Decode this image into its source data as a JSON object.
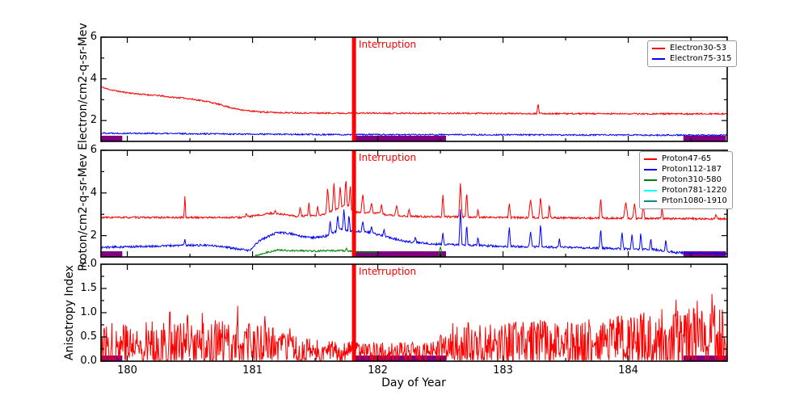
{
  "figure": {
    "background": "#ffffff",
    "left_label_top": "Proton/cm2-q-sr-Mev Electron/cm2-q-sr-Mev",
    "left_label_bottom": "Anisotropy Index",
    "x_axis": {
      "label": "Day of Year",
      "xlim": [
        179.79,
        184.79
      ],
      "major_ticks": [
        180,
        181,
        182,
        183,
        184
      ],
      "minor_ticks": [
        180.5,
        181.5,
        182.5,
        183.5,
        184.5
      ]
    },
    "interruption": {
      "label": "Interruption",
      "day": 181.81,
      "color": "#ff0000"
    },
    "gap_bars": {
      "color": "#800080",
      "ranges": [
        [
          179.79,
          179.96
        ],
        [
          181.815,
          182.545
        ],
        [
          184.44,
          184.78
        ]
      ]
    }
  },
  "chart_data": [
    {
      "type": "line",
      "name": "electron-flux-panel",
      "ylabel": "Electron/cm2-q-sr-Mev",
      "ylim": [
        1,
        6
      ],
      "yticks": [
        {
          "v": 2,
          "label": "2"
        },
        {
          "v": 4,
          "label": "4"
        },
        {
          "v": 6,
          "label": "6"
        }
      ],
      "yminor": [
        3,
        5
      ],
      "legend": {
        "position": "upper right",
        "entries": [
          {
            "label": "Electron30-53",
            "color": "#ff0000"
          },
          {
            "label": "Electron75-315",
            "color": "#0000ff"
          }
        ]
      },
      "series": [
        {
          "name": "Electron30-53",
          "color": "#ff0000",
          "seed": 11,
          "noise": 0.035,
          "base": [
            [
              179.79,
              3.62
            ],
            [
              179.85,
              3.5
            ],
            [
              179.95,
              3.38
            ],
            [
              180.05,
              3.3
            ],
            [
              180.15,
              3.24
            ],
            [
              180.25,
              3.2
            ],
            [
              180.35,
              3.12
            ],
            [
              180.45,
              3.08
            ],
            [
              180.55,
              3.0
            ],
            [
              180.65,
              2.9
            ],
            [
              180.75,
              2.75
            ],
            [
              180.85,
              2.58
            ],
            [
              180.95,
              2.48
            ],
            [
              181.05,
              2.42
            ],
            [
              181.2,
              2.38
            ],
            [
              181.5,
              2.36
            ],
            [
              182.5,
              2.35
            ],
            [
              183.5,
              2.33
            ],
            [
              184.79,
              2.32
            ]
          ],
          "spikes": [
            [
              183.28,
              2.85,
              0.01
            ]
          ]
        },
        {
          "name": "Electron75-315",
          "color": "#0000ff",
          "seed": 22,
          "noise": 0.035,
          "base": [
            [
              179.79,
              1.4
            ],
            [
              180.5,
              1.37
            ],
            [
              181.5,
              1.33
            ],
            [
              184.79,
              1.3
            ]
          ],
          "spikes": []
        }
      ]
    },
    {
      "type": "line",
      "name": "proton-flux-panel",
      "ylabel": "Proton/cm2-q-sr-Mev",
      "ylim": [
        1,
        6
      ],
      "yticks": [
        {
          "v": 2,
          "label": "2"
        },
        {
          "v": 4,
          "label": "4"
        },
        {
          "v": 6,
          "label": "6"
        }
      ],
      "yminor": [
        3,
        5
      ],
      "legend": {
        "position": "upper right",
        "entries": [
          {
            "label": "Proton47-65",
            "color": "#ff0000"
          },
          {
            "label": "Proton112-187",
            "color": "#0000ff"
          },
          {
            "label": "Proton310-580",
            "color": "#008000"
          },
          {
            "label": "Proton781-1220",
            "color": "#00ffff"
          },
          {
            "label": "Prton1080-1910",
            "color": "#008b8b"
          }
        ]
      },
      "series": [
        {
          "name": "Proton47-65",
          "color": "#ff0000",
          "seed": 33,
          "noise": 0.045,
          "base": [
            [
              179.79,
              2.85
            ],
            [
              180.9,
              2.85
            ],
            [
              181.05,
              2.95
            ],
            [
              181.15,
              3.05
            ],
            [
              181.25,
              3.0
            ],
            [
              181.35,
              2.9
            ],
            [
              181.55,
              2.95
            ],
            [
              181.65,
              3.2
            ],
            [
              181.75,
              3.45
            ],
            [
              181.82,
              3.1
            ],
            [
              182.0,
              3.05
            ],
            [
              182.1,
              2.95
            ],
            [
              182.3,
              2.9
            ],
            [
              183.0,
              2.85
            ],
            [
              184.3,
              2.8
            ],
            [
              184.79,
              2.78
            ]
          ],
          "spikes": [
            [
              180.46,
              3.9,
              0.008
            ],
            [
              180.95,
              3.05,
              0.008
            ],
            [
              181.18,
              3.2,
              0.01
            ],
            [
              181.38,
              3.35,
              0.012
            ],
            [
              181.45,
              3.6,
              0.01
            ],
            [
              181.52,
              3.4,
              0.01
            ],
            [
              181.6,
              4.3,
              0.014
            ],
            [
              181.65,
              4.55,
              0.012
            ],
            [
              181.7,
              4.4,
              0.012
            ],
            [
              181.745,
              4.72,
              0.012
            ],
            [
              181.78,
              4.45,
              0.01
            ],
            [
              181.88,
              4.0,
              0.014
            ],
            [
              181.95,
              3.55,
              0.014
            ],
            [
              182.03,
              3.5,
              0.012
            ],
            [
              182.15,
              3.45,
              0.014
            ],
            [
              182.25,
              3.25,
              0.012
            ],
            [
              182.52,
              3.95,
              0.012
            ],
            [
              182.66,
              4.5,
              0.014
            ],
            [
              182.71,
              4.1,
              0.012
            ],
            [
              182.8,
              3.25,
              0.01
            ],
            [
              183.05,
              3.55,
              0.012
            ],
            [
              183.22,
              3.7,
              0.018
            ],
            [
              183.3,
              3.85,
              0.014
            ],
            [
              183.37,
              3.5,
              0.01
            ],
            [
              183.78,
              3.8,
              0.012
            ],
            [
              183.98,
              3.6,
              0.018
            ],
            [
              184.05,
              3.55,
              0.014
            ],
            [
              184.12,
              3.45,
              0.012
            ],
            [
              184.27,
              3.35,
              0.01
            ],
            [
              184.7,
              3.0,
              0.012
            ]
          ]
        },
        {
          "name": "Proton112-187",
          "color": "#0000ff",
          "seed": 44,
          "noise": 0.05,
          "base": [
            [
              179.79,
              1.45
            ],
            [
              180.2,
              1.5
            ],
            [
              180.45,
              1.55
            ],
            [
              180.6,
              1.55
            ],
            [
              180.75,
              1.5
            ],
            [
              180.9,
              1.35
            ],
            [
              180.98,
              1.3
            ],
            [
              181.05,
              1.75
            ],
            [
              181.12,
              1.95
            ],
            [
              181.2,
              2.15
            ],
            [
              181.3,
              2.1
            ],
            [
              181.4,
              1.95
            ],
            [
              181.5,
              1.9
            ],
            [
              181.6,
              2.0
            ],
            [
              181.7,
              2.3
            ],
            [
              181.8,
              2.2
            ],
            [
              181.9,
              2.2
            ],
            [
              182.0,
              2.05
            ],
            [
              182.1,
              1.9
            ],
            [
              182.2,
              1.75
            ],
            [
              182.35,
              1.65
            ],
            [
              182.5,
              1.6
            ],
            [
              183.0,
              1.5
            ],
            [
              183.5,
              1.45
            ],
            [
              184.2,
              1.35
            ],
            [
              184.4,
              1.2
            ],
            [
              184.79,
              1.15
            ]
          ],
          "spikes": [
            [
              180.46,
              1.85,
              0.008
            ],
            [
              181.62,
              2.7,
              0.012
            ],
            [
              181.68,
              3.0,
              0.012
            ],
            [
              181.73,
              3.3,
              0.012
            ],
            [
              181.77,
              3.05,
              0.01
            ],
            [
              181.88,
              2.7,
              0.012
            ],
            [
              181.95,
              2.45,
              0.012
            ],
            [
              182.05,
              2.3,
              0.012
            ],
            [
              182.3,
              1.95,
              0.01
            ],
            [
              182.52,
              2.15,
              0.01
            ],
            [
              182.66,
              3.3,
              0.012
            ],
            [
              182.71,
              2.6,
              0.01
            ],
            [
              182.8,
              1.95,
              0.01
            ],
            [
              183.05,
              2.45,
              0.012
            ],
            [
              183.22,
              2.2,
              0.014
            ],
            [
              183.3,
              2.6,
              0.012
            ],
            [
              183.45,
              1.9,
              0.01
            ],
            [
              183.78,
              2.35,
              0.012
            ],
            [
              183.95,
              2.2,
              0.012
            ],
            [
              184.03,
              2.1,
              0.012
            ],
            [
              184.1,
              2.2,
              0.01
            ],
            [
              184.18,
              1.9,
              0.01
            ],
            [
              184.3,
              1.85,
              0.01
            ]
          ]
        },
        {
          "name": "Proton310-580",
          "color": "#008000",
          "seed": 55,
          "noise": 0.04,
          "base": [
            [
              181.02,
              1.05
            ],
            [
              181.1,
              1.2
            ],
            [
              181.2,
              1.32
            ],
            [
              181.3,
              1.3
            ],
            [
              181.5,
              1.28
            ],
            [
              181.7,
              1.3
            ],
            [
              181.8,
              1.25
            ],
            [
              181.95,
              1.22
            ],
            [
              182.0,
              1.2
            ]
          ],
          "spikes": [
            [
              181.75,
              1.42,
              0.01
            ]
          ]
        },
        {
          "name": "Proton310-580",
          "color": "#008000",
          "seed": 56,
          "noise": 0,
          "base": [
            [
              182.48,
              0.95
            ],
            [
              182.5,
              1.5
            ],
            [
              182.52,
              0.95
            ]
          ],
          "spikes": []
        },
        {
          "name": "Proton781-1220",
          "color": "#00ffff",
          "seed": 57,
          "noise": 0,
          "base": [],
          "spikes": []
        },
        {
          "name": "Prton1080-1910",
          "color": "#008b8b",
          "seed": 58,
          "noise": 0,
          "base": [],
          "spikes": []
        }
      ]
    },
    {
      "type": "line",
      "name": "anisotropy-panel",
      "ylabel": "Anisotropy Index",
      "ylim": [
        0,
        2
      ],
      "yticks": [
        {
          "v": 0,
          "label": "0.0"
        },
        {
          "v": 0.5,
          "label": "0.5"
        },
        {
          "v": 1,
          "label": "1.0"
        },
        {
          "v": 1.5,
          "label": "1.5"
        },
        {
          "v": 2,
          "label": "2.0"
        }
      ],
      "yminor": [
        0.25,
        0.75,
        1.25,
        1.75
      ],
      "legend": {
        "position": "none",
        "entries": []
      },
      "series": [
        {
          "name": "Anisotropy",
          "color": "#ff0000",
          "seed": 77,
          "floor": 0.02,
          "noise": [
            [
              179.79,
              0.5
            ],
            [
              180.6,
              0.55
            ],
            [
              181.1,
              0.45
            ],
            [
              181.3,
              0.3
            ],
            [
              181.6,
              0.22
            ],
            [
              182.45,
              0.2
            ],
            [
              182.6,
              0.5
            ],
            [
              183.4,
              0.5
            ],
            [
              183.8,
              0.55
            ],
            [
              184.2,
              0.7
            ],
            [
              184.79,
              0.8
            ]
          ],
          "base": [
            [
              179.79,
              0.3
            ],
            [
              181.15,
              0.32
            ],
            [
              181.35,
              0.22
            ],
            [
              181.55,
              0.2
            ],
            [
              182.4,
              0.18
            ],
            [
              182.6,
              0.3
            ],
            [
              183.0,
              0.32
            ],
            [
              183.6,
              0.33
            ],
            [
              184.0,
              0.35
            ],
            [
              184.79,
              0.4
            ]
          ],
          "spikes": [
            [
              179.97,
              1.1,
              0.006
            ],
            [
              180.15,
              0.95,
              0.005
            ],
            [
              180.34,
              1.25,
              0.006
            ],
            [
              180.48,
              1.0,
              0.005
            ],
            [
              180.6,
              1.05,
              0.006
            ],
            [
              180.7,
              1.0,
              0.005
            ],
            [
              180.88,
              1.3,
              0.006
            ],
            [
              181.1,
              1.15,
              0.006
            ],
            [
              181.3,
              0.8,
              0.005
            ],
            [
              182.9,
              0.95,
              0.005
            ],
            [
              183.1,
              0.9,
              0.005
            ],
            [
              183.3,
              1.0,
              0.005
            ],
            [
              183.55,
              0.95,
              0.005
            ],
            [
              183.8,
              1.05,
              0.005
            ],
            [
              184.1,
              1.3,
              0.006
            ],
            [
              184.38,
              1.45,
              0.006
            ],
            [
              184.55,
              1.35,
              0.006
            ],
            [
              184.67,
              1.6,
              0.006
            ]
          ]
        }
      ]
    }
  ]
}
